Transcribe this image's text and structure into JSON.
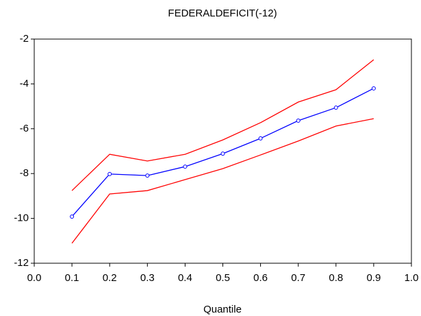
{
  "chart_data": {
    "type": "line",
    "title": "FEDERALDEFICIT(-12)",
    "xlabel": "Quantile",
    "x": [
      0.1,
      0.2,
      0.3,
      0.4,
      0.5,
      0.6,
      0.7,
      0.8,
      0.9
    ],
    "series": [
      {
        "color": "#ff0000",
        "values": [
          -8.76,
          -7.14,
          -7.44,
          -7.14,
          -6.5,
          -5.73,
          -4.81,
          -4.26,
          -2.92
        ]
      },
      {
        "color": "#0000ff",
        "marker": "circle",
        "values": [
          -9.92,
          -8.02,
          -8.09,
          -7.69,
          -7.11,
          -6.43,
          -5.64,
          -5.06,
          -4.2
        ]
      },
      {
        "color": "#ff0000",
        "values": [
          -11.11,
          -8.91,
          -8.76,
          -8.27,
          -7.78,
          -7.17,
          -6.55,
          -5.88,
          -5.55
        ]
      }
    ],
    "xlim": [
      0,
      1
    ],
    "xticks": [
      {
        "value": 0,
        "label": "0.0"
      },
      0.1,
      0.2,
      0.3,
      0.4,
      0.5,
      0.6,
      0.7,
      0.8,
      0.9,
      {
        "value": 1,
        "label": "1.0"
      }
    ],
    "ylim": [
      -12,
      -2
    ],
    "yticks": [
      -12,
      -10,
      -8,
      -6,
      -4,
      -2
    ],
    "grid": false
  }
}
